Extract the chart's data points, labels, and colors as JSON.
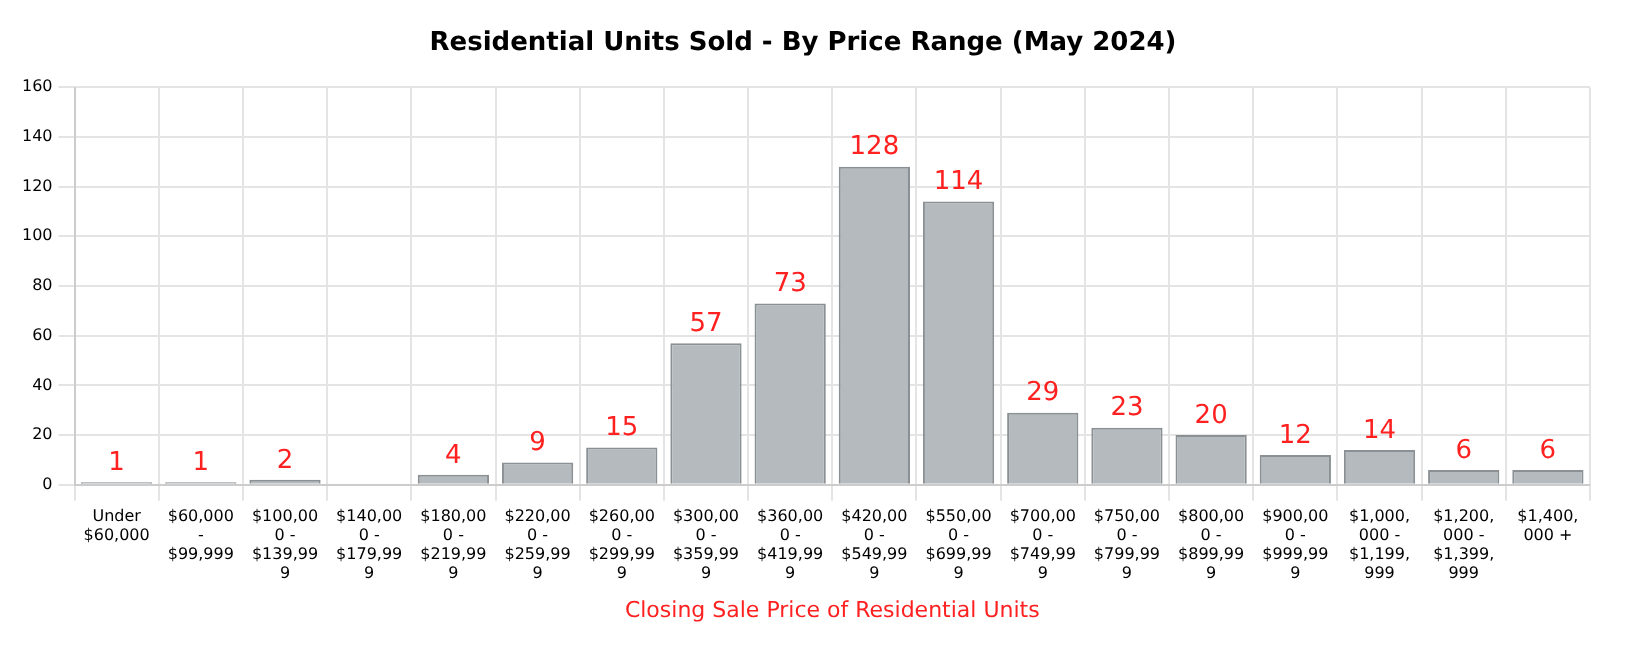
{
  "chart_data": {
    "type": "bar",
    "title": "Residential Units Sold - By Price Range (May 2024)",
    "xlabel": "Closing Sale Price of Residential Units",
    "categories": [
      "Under $60,000",
      "$60,000 - $99,999",
      "$100,000 - $139,999",
      "$140,000 - $179,999",
      "$180,000 - $219,999",
      "$220,000 - $259,999",
      "$260,000 - $299,999",
      "$300,000 - $359,999",
      "$360,000 - $419,999",
      "$420,000 - $549,999",
      "$550,000 - $699,999",
      "$700,000 - $749,999",
      "$750,000 - $799,999",
      "$800,000 - $899,999",
      "$900,000 - $999,999",
      "$1,000,000 - $1,199,999",
      "$1,200,000 - $1,399,999",
      "$1,400,000 +"
    ],
    "values": [
      1,
      1,
      2,
      0,
      4,
      9,
      15,
      57,
      73,
      128,
      114,
      29,
      23,
      20,
      12,
      14,
      6,
      6
    ],
    "value_labels": [
      "1",
      "1",
      "2",
      null,
      "4",
      "9",
      "15",
      "57",
      "73",
      "128",
      "114",
      "29",
      "23",
      "20",
      "12",
      "14",
      "6",
      "6"
    ],
    "color": "#b4babd",
    "ylim": [
      0,
      160
    ],
    "yticks": [
      0,
      20,
      40,
      60,
      80,
      100,
      120,
      140,
      160
    ],
    "grid": true
  }
}
